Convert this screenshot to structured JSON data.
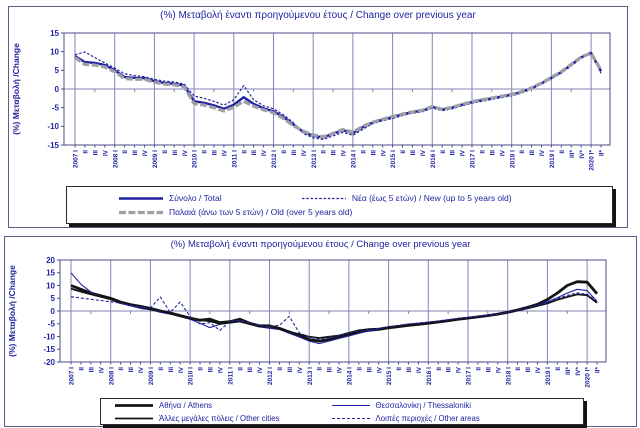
{
  "colors": {
    "accent_navy": "#2022a2",
    "series_blue": "#2121a3",
    "series_gray": "#9ea0a6",
    "series_black": "#141414",
    "gridline": "#8386b6",
    "frame": "#4a4c88"
  },
  "chart_data": [
    {
      "type": "line",
      "title": "(%) Μεταβολή έναντι προηγούμενου έτους / Change over previous year",
      "xlabel": "",
      "ylabel": "(%) Μεταβολή /Change",
      "ylim": [
        -15,
        15
      ],
      "y_ticks": [
        15,
        10,
        5,
        0,
        -5,
        -10,
        -15
      ],
      "grid": "vertical-yearly-plus-zero-line",
      "legend_position": "bottom-box",
      "x_tick_labels": [
        "2007 I",
        "II",
        "III",
        "IV",
        "2008 I",
        "II",
        "III",
        "IV",
        "2009 I",
        "II",
        "III",
        "IV",
        "2010 I",
        "II",
        "III",
        "IV",
        "2011 I",
        "II",
        "III",
        "IV",
        "2012 I",
        "II",
        "III",
        "IV",
        "2013 I",
        "II",
        "III",
        "IV",
        "2014 I",
        "II",
        "III",
        "IV",
        "2015 I",
        "II",
        "III",
        "IV",
        "2016 I",
        "II",
        "III",
        "IV",
        "2017 I",
        "II",
        "III",
        "IV",
        "2018 I",
        "II",
        "III",
        "IV",
        "2019 I",
        "II",
        "III*",
        "IV*",
        "2020 I*",
        "II*"
      ],
      "series": [
        {
          "name": "total",
          "label": "Σύνολο / Total",
          "color": "#2121a3",
          "width": 2.4,
          "dash": "",
          "values": [
            8.8,
            7.2,
            7.0,
            6.4,
            5.0,
            3.2,
            3.0,
            2.9,
            2.1,
            1.6,
            1.4,
            0.9,
            -3.3,
            -3.7,
            -4.4,
            -5.3,
            -4.2,
            -2.2,
            -4.0,
            -5.2,
            -6.0,
            -7.5,
            -9.5,
            -11.5,
            -12.5,
            -13.0,
            -12.0,
            -11.0,
            -11.8,
            -10.2,
            -9.0,
            -8.2,
            -7.5,
            -6.8,
            -6.2,
            -5.8,
            -4.8,
            -5.5,
            -5.0,
            -4.2,
            -3.5,
            -3.0,
            -2.5,
            -2.0,
            -1.5,
            -0.8,
            0.2,
            1.5,
            3.0,
            4.5,
            6.5,
            8.5,
            9.5,
            4.8
          ]
        },
        {
          "name": "new",
          "label": "Νέα (έως 5 ετών) / New (up to 5 years old)",
          "color": "#2121a3",
          "width": 1.2,
          "dash": "2.5,1.8",
          "values": [
            9.2,
            9.9,
            8.4,
            7.0,
            5.6,
            4.1,
            3.6,
            3.3,
            2.6,
            2.1,
            1.9,
            1.3,
            -1.9,
            -2.5,
            -3.3,
            -4.3,
            -2.9,
            0.9,
            -2.9,
            -4.5,
            -5.3,
            -6.9,
            -9.0,
            -11.9,
            -13.1,
            -13.5,
            -12.6,
            -11.6,
            -12.4,
            -10.8,
            -9.3,
            -8.5,
            -7.9,
            -7.1,
            -6.5,
            -6.1,
            -5.1,
            -5.8,
            -5.3,
            -4.5,
            -3.8,
            -3.3,
            -2.8,
            -2.3,
            -1.8,
            -1.1,
            0.0,
            1.3,
            2.7,
            4.2,
            6.2,
            8.2,
            10.1,
            4.2
          ]
        },
        {
          "name": "old",
          "label": "Παλαιά (άνω των 5 ετών) / Old (over 5 years old)",
          "color": "#9ea0a6",
          "width": 3.2,
          "dash": "7,2.4",
          "values": [
            8.4,
            6.6,
            6.4,
            5.9,
            4.6,
            2.8,
            2.6,
            2.6,
            1.8,
            1.3,
            1.1,
            0.6,
            -3.9,
            -4.3,
            -5.0,
            -5.9,
            -4.9,
            -3.3,
            -4.6,
            -5.6,
            -6.4,
            -7.9,
            -9.8,
            -11.3,
            -12.3,
            -12.8,
            -11.9,
            -10.8,
            -11.6,
            -10.0,
            -8.9,
            -8.1,
            -7.4,
            -6.7,
            -6.1,
            -5.7,
            -4.7,
            -5.4,
            -4.9,
            -4.1,
            -3.4,
            -2.9,
            -2.4,
            -1.9,
            -1.4,
            -0.7,
            0.3,
            1.6,
            3.1,
            4.6,
            6.6,
            8.6,
            9.6,
            5.0
          ]
        }
      ]
    },
    {
      "type": "line",
      "title": "(%) Μεταβολή έναντι προηγούμενου έτους / Change over previous year",
      "xlabel": "",
      "ylabel": "(%) Μεταβολή /Change",
      "ylim": [
        -20,
        20
      ],
      "y_ticks": [
        20,
        15,
        10,
        5,
        0,
        -5,
        -10,
        -15,
        -20
      ],
      "grid": "vertical-yearly-plus-zero-line",
      "legend_position": "bottom-box",
      "x_tick_labels": [
        "2007 I",
        "II",
        "III",
        "IV",
        "2008 I",
        "II",
        "III",
        "IV",
        "2009 I",
        "II",
        "III",
        "IV",
        "2010 I",
        "II",
        "III",
        "IV",
        "2011 I",
        "II",
        "III",
        "IV",
        "2012 I",
        "II",
        "III",
        "IV",
        "2013 I",
        "II",
        "III",
        "IV",
        "2014 I",
        "II",
        "III",
        "IV",
        "2015 I",
        "II",
        "III",
        "IV",
        "2016 I",
        "II",
        "III",
        "IV",
        "2017 I",
        "II",
        "III",
        "IV",
        "2018 I",
        "II",
        "III",
        "IV",
        "2019 I",
        "II",
        "III*",
        "IV*",
        "2020 I*",
        "II*"
      ],
      "series": [
        {
          "name": "athens",
          "label": "Αθήνα / Athens",
          "color": "#141414",
          "width": 2.8,
          "dash": "",
          "values": [
            10.0,
            8.5,
            7.0,
            6.0,
            5.0,
            3.5,
            2.5,
            1.8,
            1.0,
            0.0,
            -0.8,
            -1.8,
            -2.8,
            -3.6,
            -3.2,
            -4.6,
            -4.2,
            -3.2,
            -4.8,
            -5.8,
            -5.8,
            -6.8,
            -8.2,
            -9.8,
            -11.2,
            -11.8,
            -11.2,
            -10.2,
            -9.2,
            -8.2,
            -7.6,
            -7.2,
            -6.6,
            -6.1,
            -5.6,
            -5.2,
            -4.8,
            -4.3,
            -3.8,
            -3.2,
            -2.8,
            -2.3,
            -1.8,
            -1.2,
            -0.5,
            0.4,
            1.4,
            2.6,
            4.5,
            7.0,
            10.0,
            11.5,
            11.3,
            6.8
          ]
        },
        {
          "name": "thessaloniki",
          "label": "Θεσσαλονίκη / Thessaloniki",
          "color": "#2121a3",
          "width": 1.1,
          "dash": "",
          "values": [
            15.0,
            10.5,
            7.5,
            5.5,
            4.5,
            3.0,
            2.0,
            1.0,
            0.5,
            -0.5,
            -1.2,
            -2.2,
            -3.2,
            -4.8,
            -6.5,
            -5.2,
            -4.5,
            -3.8,
            -5.2,
            -6.2,
            -6.8,
            -7.2,
            -8.8,
            -10.2,
            -11.8,
            -12.8,
            -11.8,
            -10.8,
            -9.8,
            -8.8,
            -7.8,
            -7.2,
            -6.2,
            -5.8,
            -5.2,
            -4.9,
            -4.6,
            -4.1,
            -3.6,
            -3.1,
            -2.6,
            -2.1,
            -1.6,
            -1.1,
            -0.6,
            0.3,
            1.1,
            2.2,
            3.6,
            5.2,
            7.0,
            8.5,
            8.0,
            3.8
          ]
        },
        {
          "name": "other-cities",
          "label": "Άλλες μεγάλες πόλεις / Other cities",
          "color": "#141414",
          "width": 1.8,
          "dash": "",
          "values": [
            8.8,
            7.6,
            6.6,
            5.6,
            4.6,
            3.1,
            2.6,
            1.6,
            0.6,
            0.1,
            -1.0,
            -2.0,
            -3.0,
            -3.5,
            -4.0,
            -5.0,
            -4.6,
            -4.1,
            -5.1,
            -6.1,
            -6.1,
            -7.1,
            -8.1,
            -9.1,
            -10.1,
            -10.6,
            -10.1,
            -9.6,
            -8.6,
            -7.6,
            -7.1,
            -6.9,
            -6.3,
            -5.9,
            -5.3,
            -5.1,
            -4.7,
            -4.2,
            -3.7,
            -3.2,
            -2.7,
            -2.2,
            -1.8,
            -1.3,
            -0.7,
            0.2,
            1.0,
            2.0,
            3.0,
            4.4,
            5.5,
            6.5,
            6.2,
            3.2
          ]
        },
        {
          "name": "other-areas",
          "label": "Λοιπές περιοχές / Other areas",
          "color": "#2121a3",
          "width": 1.1,
          "dash": "3,2",
          "values": [
            5.6,
            5.1,
            4.6,
            4.1,
            3.6,
            3.1,
            2.1,
            1.6,
            1.1,
            5.5,
            -0.5,
            3.5,
            -2.1,
            -5.1,
            -4.6,
            -7.6,
            -4.1,
            -3.6,
            -4.6,
            -5.6,
            -6.1,
            -5.6,
            -2.1,
            -8.6,
            -10.1,
            -11.1,
            -10.6,
            -9.6,
            -8.6,
            -7.9,
            -7.3,
            -6.9,
            -6.1,
            -5.6,
            -5.1,
            -4.7,
            -4.3,
            -3.9,
            -3.4,
            -2.9,
            -2.5,
            -2.1,
            -1.7,
            -1.2,
            -0.6,
            0.3,
            1.3,
            2.3,
            3.3,
            4.9,
            6.1,
            7.1,
            6.6,
            3.8
          ]
        }
      ]
    }
  ]
}
